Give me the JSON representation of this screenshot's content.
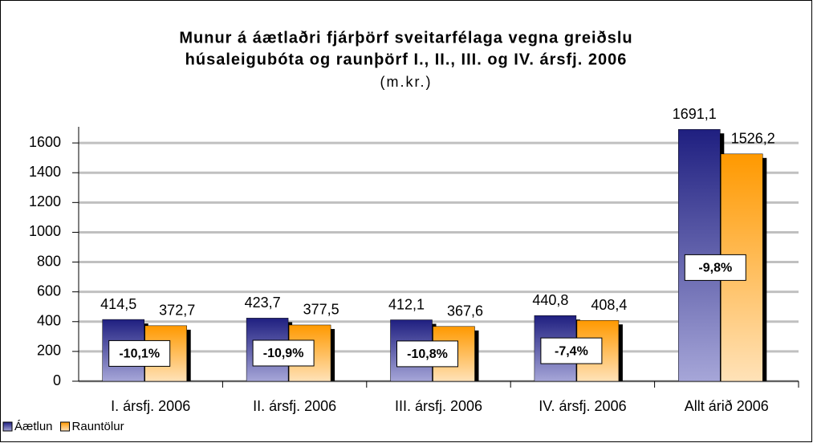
{
  "chart_data": {
    "type": "bar",
    "title_lines": [
      "Munur á áætlaðri fjárþörf sveitarfélaga vegna greiðslu",
      "húsaleigubóta og raunþörf I., II., III. og IV. ársfj. 2006"
    ],
    "subtitle": "(m.kr.)",
    "categories": [
      "I. ársfj. 2006",
      "II. ársfj. 2006",
      "III. ársfj. 2006",
      "IV. ársfj. 2006",
      "Allt árið 2006"
    ],
    "series": [
      {
        "name": "Áætlun",
        "color": "#1f1f80",
        "values": [
          414.5,
          423.7,
          412.1,
          440.8,
          1691.1
        ],
        "value_labels": [
          "414,5",
          "423,7",
          "412,1",
          "440,8",
          "1691,1"
        ]
      },
      {
        "name": "Rauntölur",
        "color": "#ff9900",
        "values": [
          372.7,
          377.5,
          367.6,
          408.4,
          1526.2
        ],
        "value_labels": [
          "372,7",
          "377,5",
          "367,6",
          "408,4",
          "1526,2"
        ]
      }
    ],
    "annotations": [
      "-10,1%",
      "-10,9%",
      "-10,8%",
      "-7,4%",
      "-9,8%"
    ],
    "ylim": [
      0,
      1800
    ],
    "yticks": [
      0,
      200,
      400,
      600,
      800,
      1000,
      1200,
      1400,
      1600
    ],
    "grid": true,
    "legend": "bottom-left"
  }
}
